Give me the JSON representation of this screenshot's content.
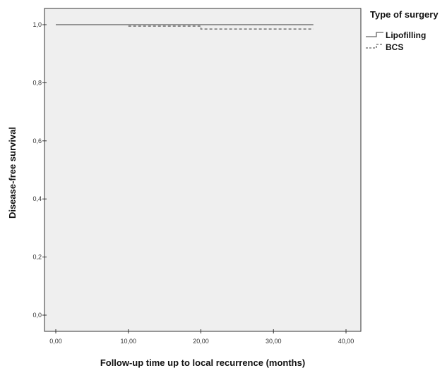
{
  "chart_data": {
    "type": "line",
    "chart_style": "kaplan-meier step curves",
    "xlabel": "Follow-up time up to local recurrence (months)",
    "ylabel": "Disease-free survival",
    "xlim": [
      0,
      40
    ],
    "ylim": [
      0,
      1
    ],
    "x_ticks": [
      {
        "value": 0,
        "label": "0,00"
      },
      {
        "value": 10,
        "label": "10,00"
      },
      {
        "value": 20,
        "label": "20,00"
      },
      {
        "value": 30,
        "label": "30,00"
      },
      {
        "value": 40,
        "label": "40,00"
      }
    ],
    "y_ticks": [
      {
        "value": 0,
        "label": "0,0"
      },
      {
        "value": 0.2,
        "label": "0,2"
      },
      {
        "value": 0.4,
        "label": "0,4"
      },
      {
        "value": 0.6,
        "label": "0,6"
      },
      {
        "value": 0.8,
        "label": "0,8"
      },
      {
        "value": 1.0,
        "label": "1,0"
      }
    ],
    "grid": false,
    "legend": {
      "title": "Type of surgery",
      "placement": "right, outside plot",
      "entries": [
        "Lipofilling",
        "BCS"
      ]
    },
    "series": [
      {
        "name": "Lipofilling",
        "line_style": "solid",
        "color": "#777777",
        "steps": [
          {
            "x": 0,
            "y": 1.0
          },
          {
            "x": 35.5,
            "y": 1.0
          }
        ]
      },
      {
        "name": "BCS",
        "line_style": "dashed",
        "color": "#777777",
        "steps": [
          {
            "x": 10,
            "y": 0.995
          },
          {
            "x": 20,
            "y": 0.985
          },
          {
            "x": 35.5,
            "y": 0.985
          }
        ]
      }
    ],
    "colors": {
      "plot_background": "#efefef",
      "frame": "#333333"
    }
  }
}
